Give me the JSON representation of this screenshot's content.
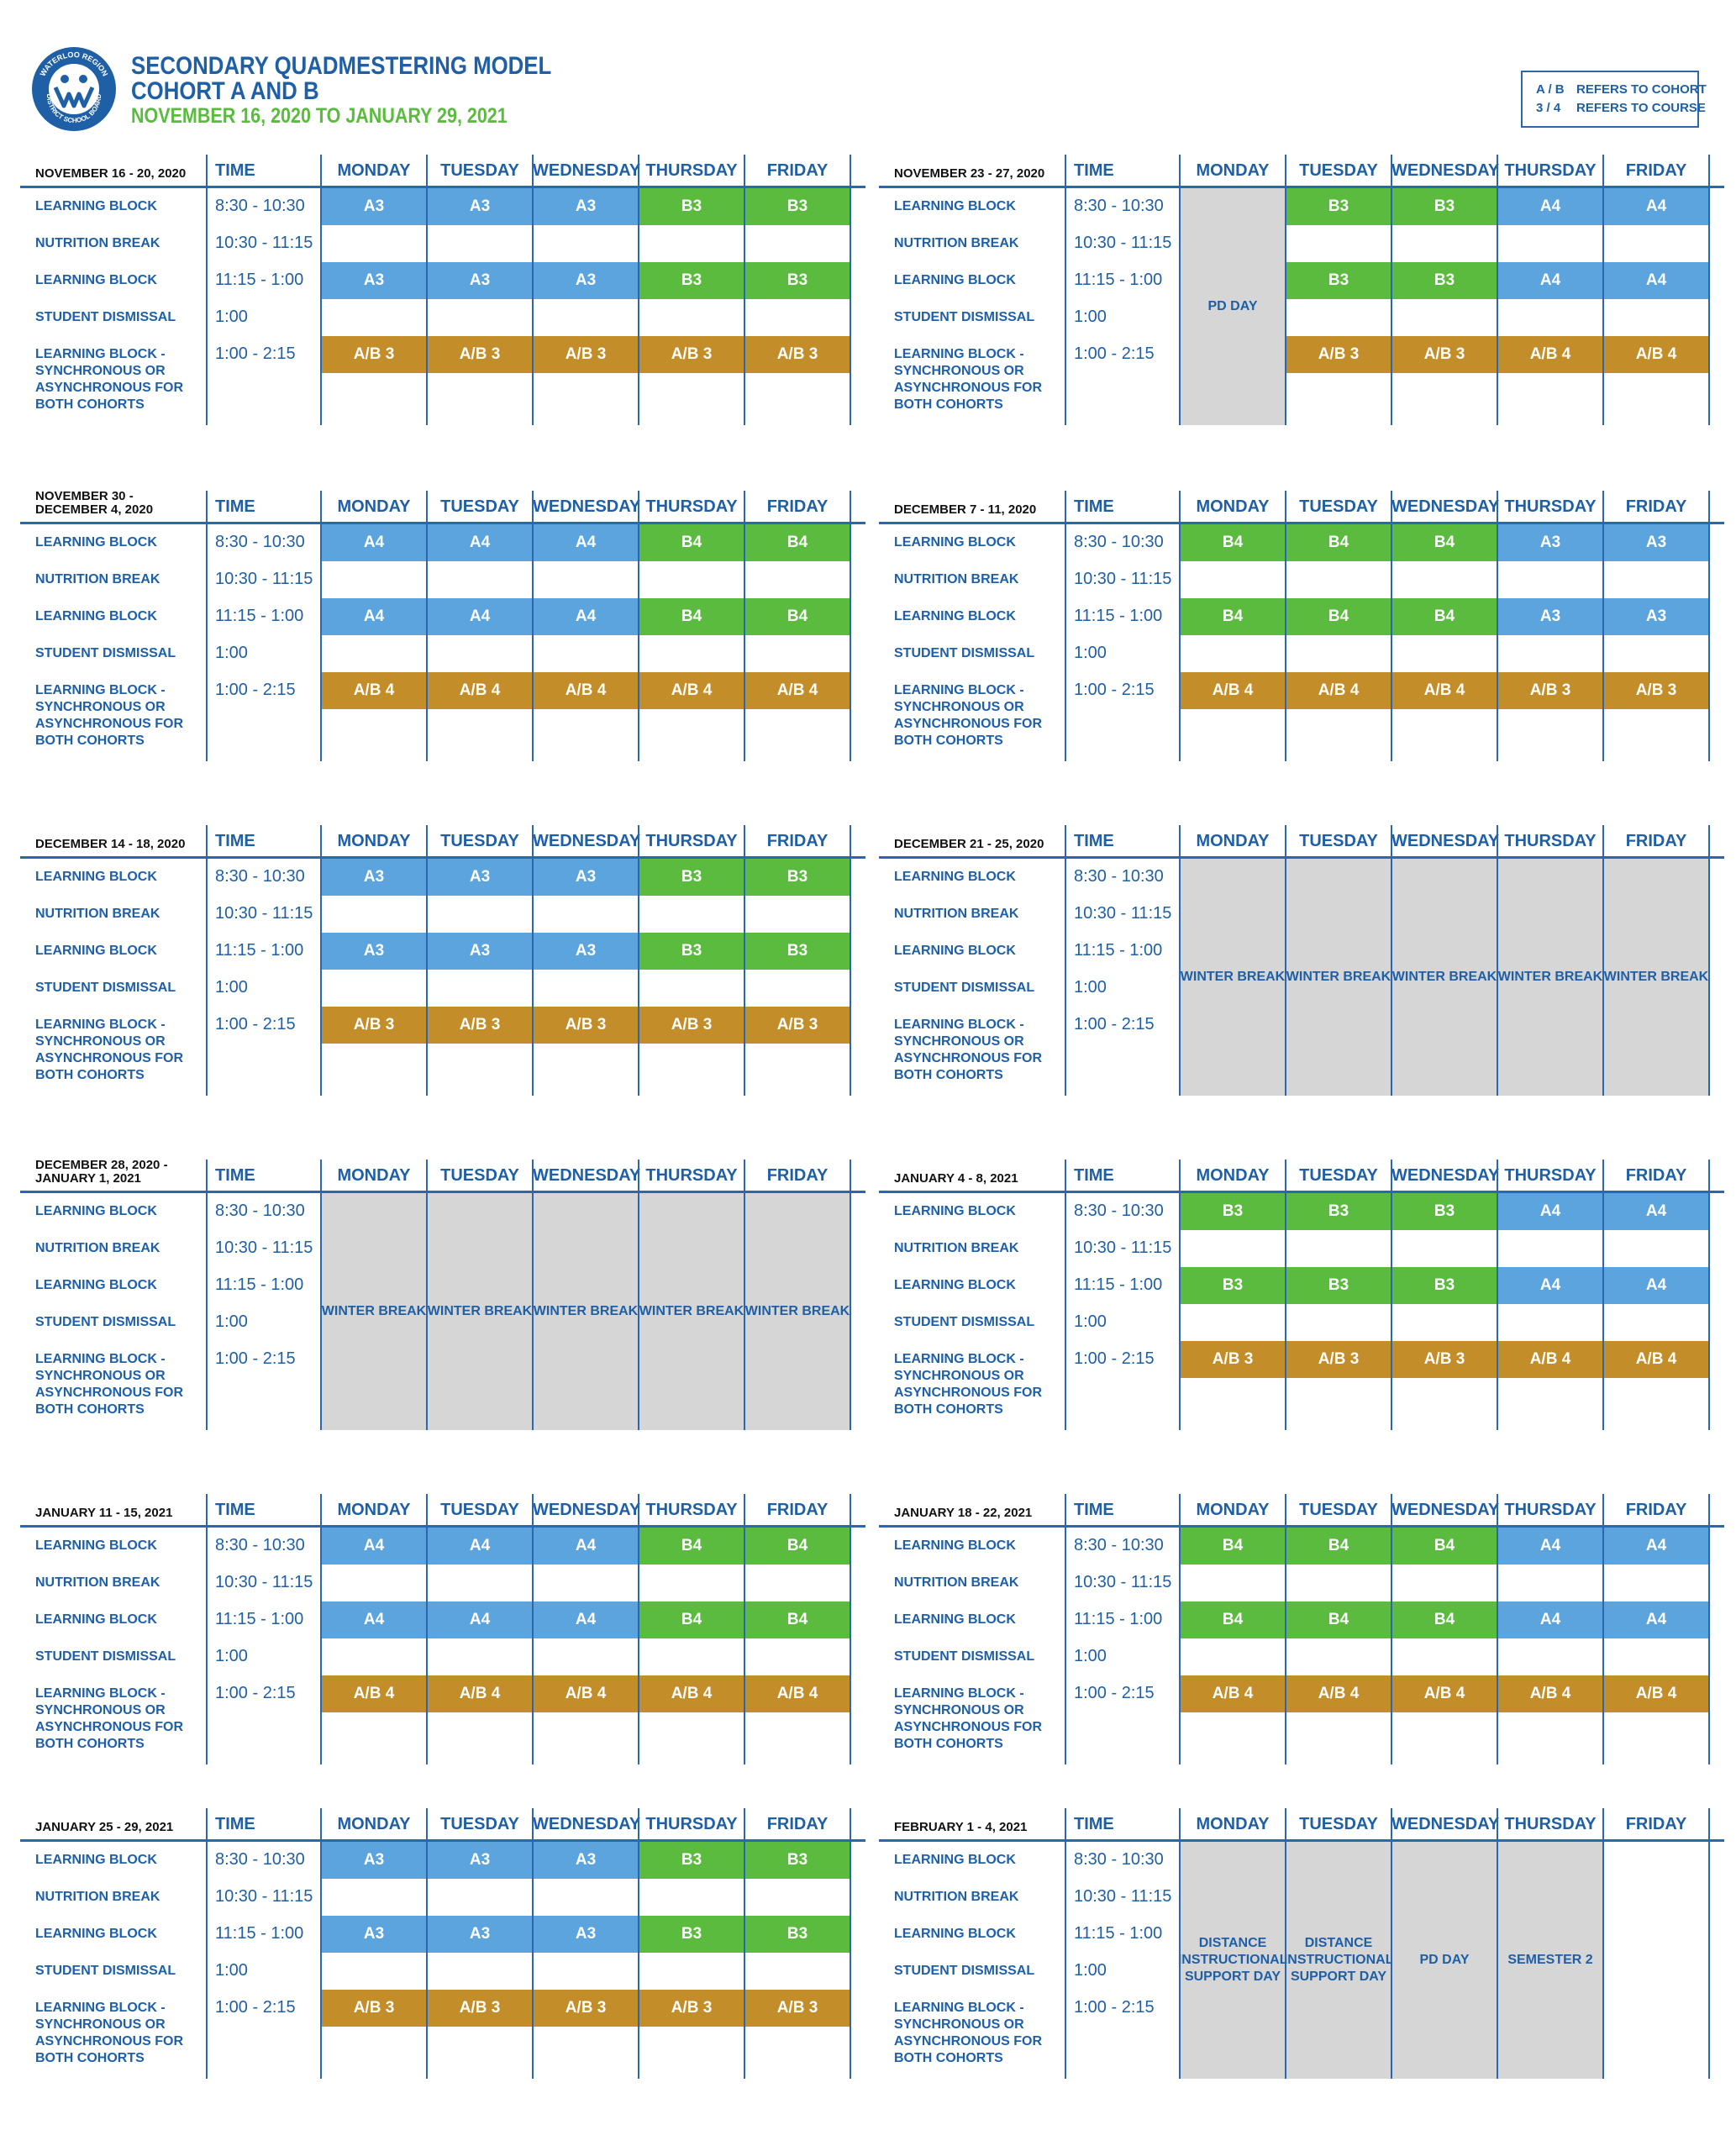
{
  "header": {
    "title_line1": "SECONDARY QUADMESTERING MODEL",
    "title_line2": "COHORT A AND B",
    "date_range": "NOVEMBER 16, 2020 TO JANUARY 29, 2021",
    "logo_text": "WATERLOO REGION DISTRICT SCHOOL BOARD"
  },
  "legend": [
    {
      "key": "A / B",
      "text": "REFERS TO COHORT"
    },
    {
      "key": "3 / 4",
      "text": "REFERS TO COURSE"
    }
  ],
  "columns": {
    "time": "TIME",
    "days": [
      "MONDAY",
      "TUESDAY",
      "WEDNESDAY",
      "THURSDAY",
      "FRIDAY"
    ]
  },
  "rows": [
    {
      "label": "LEARNING BLOCK",
      "time": "8:30 - 10:30"
    },
    {
      "label": "NUTRITION BREAK",
      "time": "10:30 - 11:15"
    },
    {
      "label": "LEARNING BLOCK",
      "time": "11:15 - 1:00"
    },
    {
      "label": "STUDENT DISMISSAL",
      "time": "1:00"
    },
    {
      "label": "LEARNING BLOCK - SYNCHRONOUS OR ASYNCHRONOUS FOR BOTH COHORTS",
      "time": "1:00 - 2:15"
    }
  ],
  "weeks": [
    {
      "label": "NOVEMBER 16 - 20, 2020",
      "type": "normal",
      "block1": [
        "A3",
        "A3",
        "A3",
        "B3",
        "B3"
      ],
      "block2": [
        "A3",
        "A3",
        "A3",
        "B3",
        "B3"
      ],
      "sync": [
        "A/B 3",
        "A/B 3",
        "A/B 3",
        "A/B 3",
        "A/B 3"
      ]
    },
    {
      "label": "NOVEMBER 23 - 27, 2020",
      "type": "pd_monday",
      "pd_label": "PD DAY",
      "block1": [
        "",
        "B3",
        "B3",
        "A4",
        "A4"
      ],
      "block2": [
        "",
        "B3",
        "B3",
        "A4",
        "A4"
      ],
      "sync": [
        "",
        "A/B 3",
        "A/B 3",
        "A/B 4",
        "A/B 4"
      ]
    },
    {
      "label": "NOVEMBER 30 - DECEMBER 4, 2020",
      "type": "normal",
      "block1": [
        "A4",
        "A4",
        "A4",
        "B4",
        "B4"
      ],
      "block2": [
        "A4",
        "A4",
        "A4",
        "B4",
        "B4"
      ],
      "sync": [
        "A/B 4",
        "A/B 4",
        "A/B 4",
        "A/B 4",
        "A/B 4"
      ]
    },
    {
      "label": "DECEMBER 7 - 11, 2020",
      "type": "normal",
      "block1": [
        "B4",
        "B4",
        "B4",
        "A3",
        "A3"
      ],
      "block2": [
        "B4",
        "B4",
        "B4",
        "A3",
        "A3"
      ],
      "sync": [
        "A/B 4",
        "A/B 4",
        "A/B 4",
        "A/B 3",
        "A/B 3"
      ]
    },
    {
      "label": "DECEMBER 14 - 18, 2020",
      "type": "normal",
      "block1": [
        "A3",
        "A3",
        "A3",
        "B3",
        "B3"
      ],
      "block2": [
        "A3",
        "A3",
        "A3",
        "B3",
        "B3"
      ],
      "sync": [
        "A/B 3",
        "A/B 3",
        "A/B 3",
        "A/B 3",
        "A/B 3"
      ]
    },
    {
      "label": "DECEMBER 21 - 25, 2020",
      "type": "break",
      "break_labels": [
        "WINTER BREAK",
        "WINTER BREAK",
        "WINTER BREAK",
        "WINTER BREAK",
        "WINTER BREAK"
      ]
    },
    {
      "label": "DECEMBER 28, 2020 - JANUARY 1, 2021",
      "type": "break",
      "break_labels": [
        "WINTER BREAK",
        "WINTER BREAK",
        "WINTER BREAK",
        "WINTER BREAK",
        "WINTER BREAK"
      ]
    },
    {
      "label": "JANUARY 4 - 8, 2021",
      "type": "normal",
      "block1": [
        "B3",
        "B3",
        "B3",
        "A4",
        "A4"
      ],
      "block2": [
        "B3",
        "B3",
        "B3",
        "A4",
        "A4"
      ],
      "sync": [
        "A/B 3",
        "A/B 3",
        "A/B 3",
        "A/B 4",
        "A/B 4"
      ]
    },
    {
      "label": "JANUARY 11 - 15, 2021",
      "type": "normal",
      "block1": [
        "A4",
        "A4",
        "A4",
        "B4",
        "B4"
      ],
      "block2": [
        "A4",
        "A4",
        "A4",
        "B4",
        "B4"
      ],
      "sync": [
        "A/B 4",
        "A/B 4",
        "A/B 4",
        "A/B 4",
        "A/B 4"
      ]
    },
    {
      "label": "JANUARY 18 - 22, 2021",
      "type": "normal",
      "block1": [
        "B4",
        "B4",
        "B4",
        "A4",
        "A4"
      ],
      "block2": [
        "B4",
        "B4",
        "B4",
        "A4",
        "A4"
      ],
      "sync": [
        "A/B 4",
        "A/B 4",
        "A/B 4",
        "A/B 4",
        "A/B 4"
      ]
    },
    {
      "label": "JANUARY 25 - 29, 2021",
      "type": "normal",
      "block1": [
        "A3",
        "A3",
        "A3",
        "B3",
        "B3"
      ],
      "block2": [
        "A3",
        "A3",
        "A3",
        "B3",
        "B3"
      ],
      "sync": [
        "A/B 3",
        "A/B 3",
        "A/B 3",
        "A/B 3",
        "A/B 3"
      ]
    },
    {
      "label": "FEBRUARY 1 - 4, 2021",
      "type": "special",
      "special_labels": [
        "DISTANCE INSTRUCTIONAL SUPPORT DAY",
        "DISTANCE INSTRUCTIONAL SUPPORT DAY",
        "PD DAY",
        "SEMESTER 2",
        ""
      ]
    }
  ],
  "colors": {
    "cohort_a": "#5ca4dd",
    "cohort_b": "#5bbb3f",
    "sync": "#c38d2a",
    "closed": "#d6d6d6",
    "text": "#1f5fa6"
  }
}
